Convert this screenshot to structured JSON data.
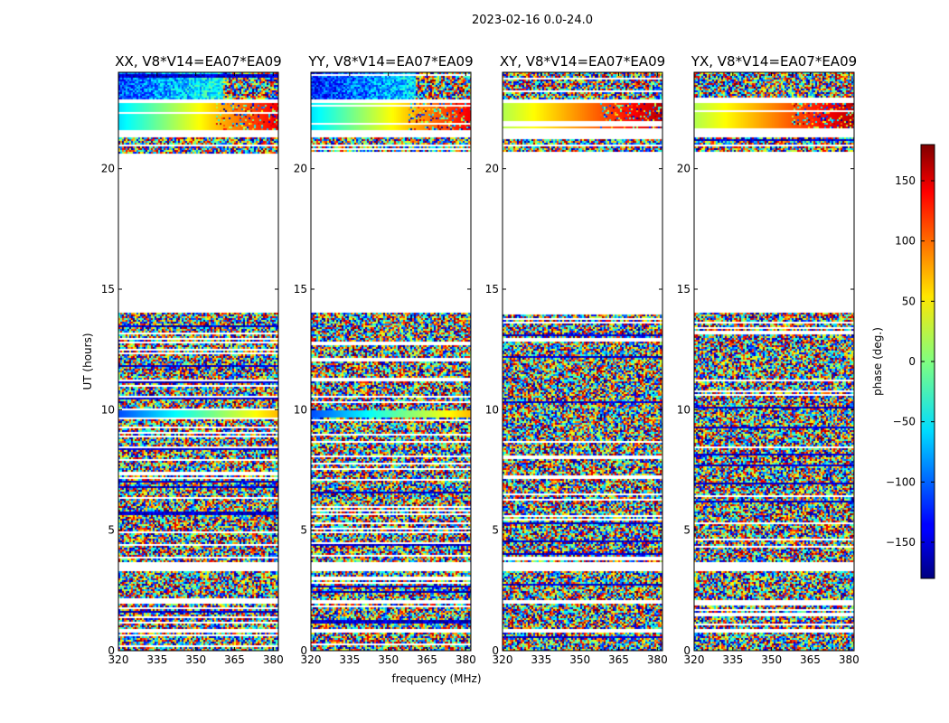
{
  "chart_data": {
    "type": "heatmap",
    "suptitle": "2023-02-16 0.0-24.0",
    "xlabel": "frequency (MHz)",
    "ylabel": "UT (hours)",
    "xlim": [
      320,
      382
    ],
    "ylim": [
      0,
      24
    ],
    "x_ticks": [
      320,
      335,
      350,
      365,
      380
    ],
    "y_ticks": [
      0,
      5,
      10,
      15,
      20
    ],
    "panels": [
      {
        "title": "XX, V8*V14=EA07*EA09",
        "pol": "XX"
      },
      {
        "title": "YY, V8*V14=EA07*EA09",
        "pol": "YY"
      },
      {
        "title": "XY, V8*V14=EA07*EA09",
        "pol": "XY"
      },
      {
        "title": "YX, V8*V14=EA07*EA09",
        "pol": "YX"
      }
    ],
    "colorbar": {
      "label": "phase (deg.)",
      "range": [
        -180,
        180
      ],
      "ticks": [
        -150,
        -100,
        -50,
        0,
        50,
        100,
        150
      ],
      "colormap": "jet"
    },
    "flagged_gaps_hours": [
      [
        14.0,
        20.6
      ],
      [
        20.9,
        21.0
      ],
      [
        21.3,
        21.6
      ],
      [
        22.7,
        22.9
      ],
      [
        3.3,
        3.7
      ],
      [
        1.95,
        2.1
      ],
      [
        0.75,
        0.9
      ]
    ]
  }
}
